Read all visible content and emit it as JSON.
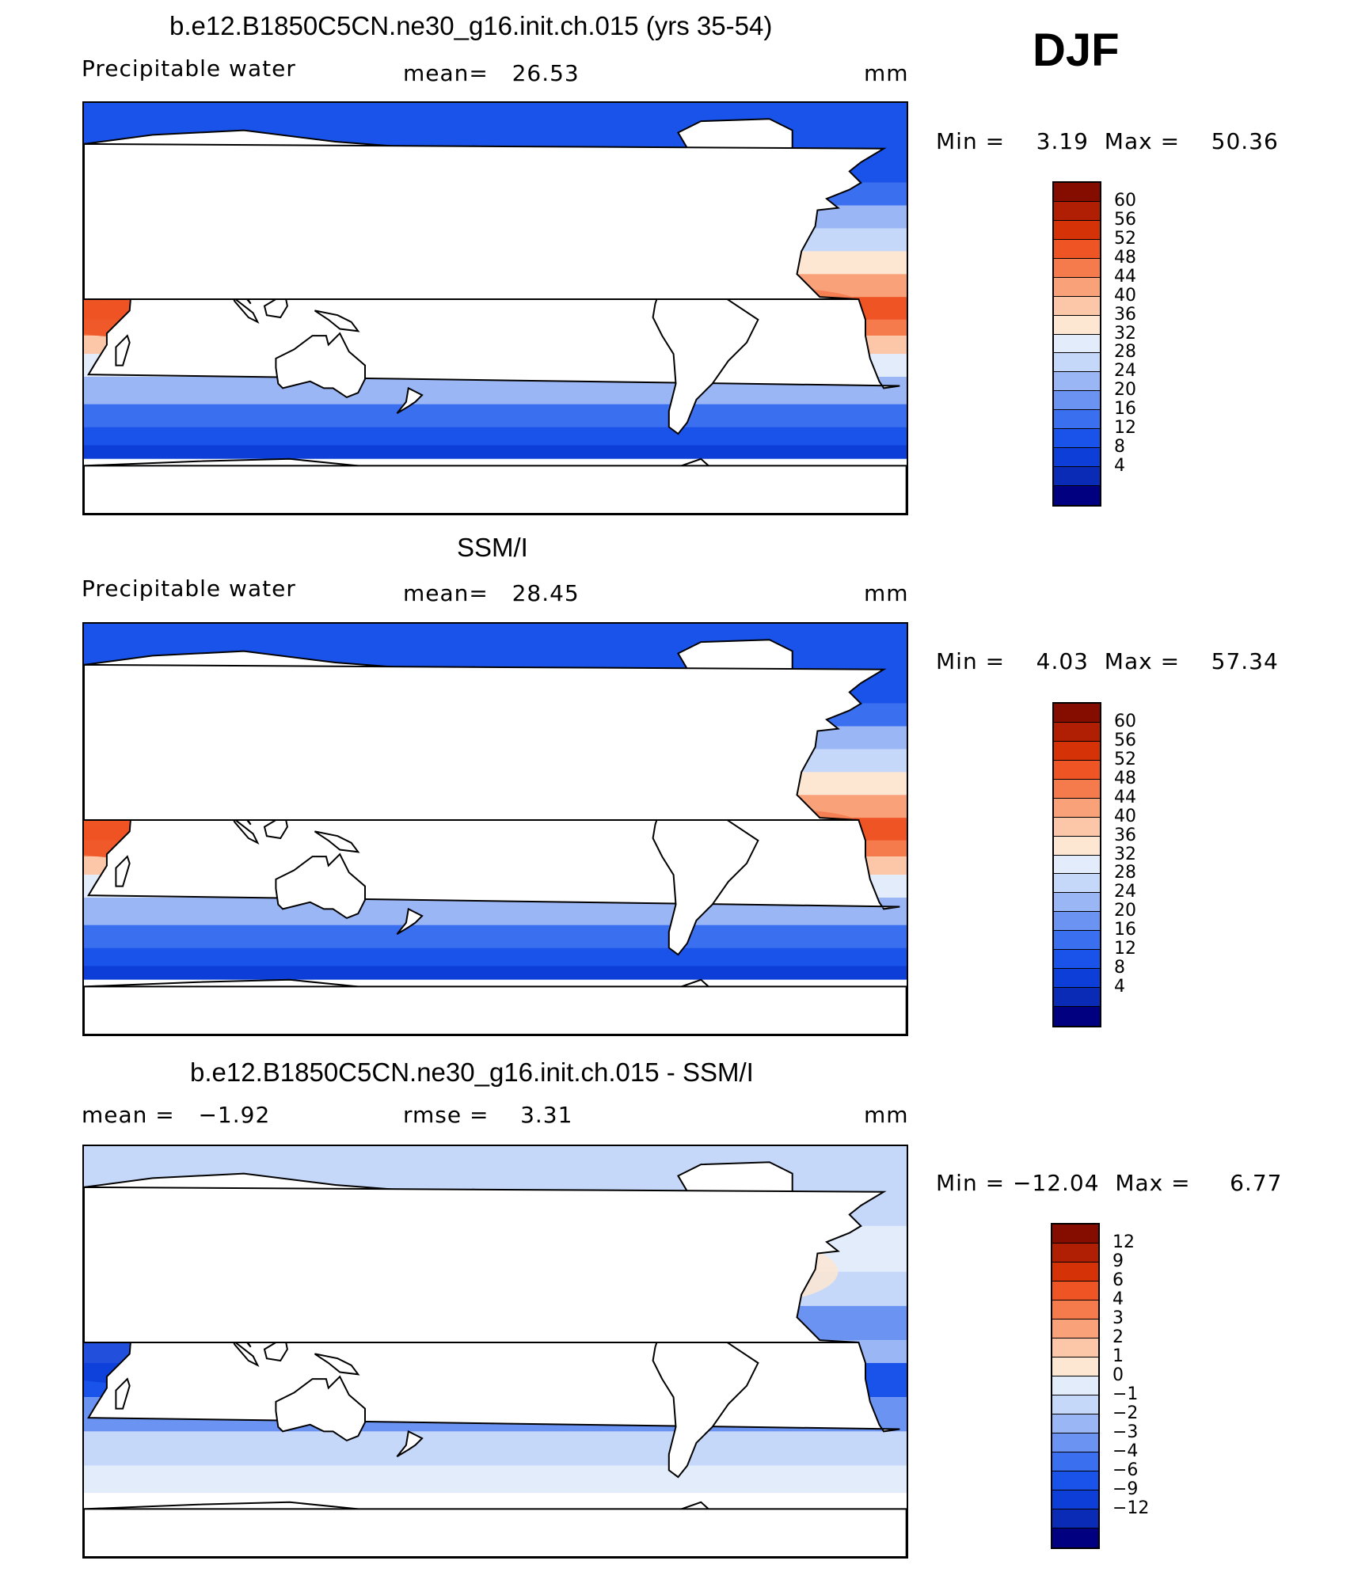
{
  "season": "DJF",
  "colors": {
    "abs_scale": [
      "#000080",
      "#0a2bb5",
      "#0d3ed8",
      "#1a53ea",
      "#3a6ff0",
      "#6a93f2",
      "#9ab6f5",
      "#c6d8f9",
      "#e2ecfb",
      "#fde6d2",
      "#fbc7a8",
      "#f9a27a",
      "#f57a4c",
      "#ef5424",
      "#d63208",
      "#b01e04",
      "#850d00"
    ],
    "diff_scale": [
      "#000080",
      "#0a2bb5",
      "#0d3ed8",
      "#1a53ea",
      "#3a6ff0",
      "#6a93f2",
      "#9ab6f5",
      "#c6d8f9",
      "#e2ecfb",
      "#fde6d2",
      "#fbc7a8",
      "#f9a27a",
      "#f57a4c",
      "#ef5424",
      "#d63208",
      "#b01e04",
      "#850d00"
    ]
  },
  "panels": [
    {
      "title": "b.e12.B1850C5CN.ne30_g16.init.ch.015 (yrs 35-54)",
      "left_label": "Precipitable water",
      "center_label": "mean=   26.53",
      "units": "mm",
      "stats": "Min =    3.19  Max =    50.36",
      "colorbar_ticks": [
        "60",
        "56",
        "52",
        "48",
        "44",
        "40",
        "36",
        "32",
        "28",
        "24",
        "20",
        "16",
        "12",
        "8",
        "4"
      ],
      "field_type": "model"
    },
    {
      "title": "SSM/I",
      "left_label": "Precipitable water",
      "center_label": "mean=   28.45",
      "units": "mm",
      "stats": "Min =    4.03  Max =    57.34",
      "colorbar_ticks": [
        "60",
        "56",
        "52",
        "48",
        "44",
        "40",
        "36",
        "32",
        "28",
        "24",
        "20",
        "16",
        "12",
        "8",
        "4"
      ],
      "field_type": "obs"
    },
    {
      "title": "b.e12.B1850C5CN.ne30_g16.init.ch.015 - SSM/I",
      "left_label": "mean =   −1.92",
      "center_label": "rmse =    3.31",
      "units": "mm",
      "stats": "Min = −12.04  Max =     6.77",
      "colorbar_ticks": [
        "12",
        "9",
        "6",
        "4",
        "3",
        "2",
        "1",
        "0",
        "−1",
        "−2",
        "−3",
        "−4",
        "−6",
        "−9",
        "−12"
      ],
      "field_type": "diff"
    }
  ]
}
